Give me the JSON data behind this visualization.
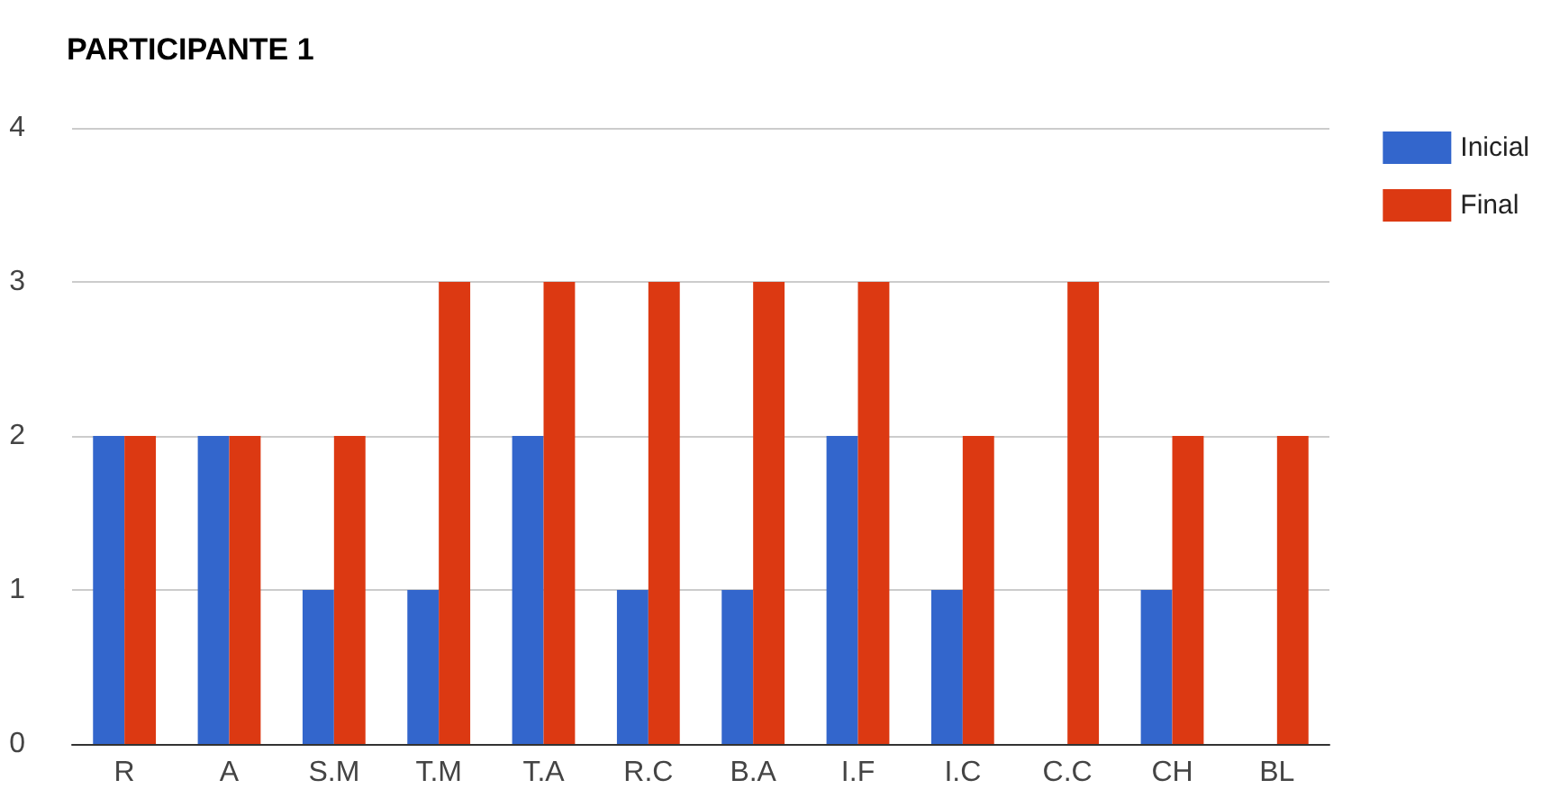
{
  "chart_data": {
    "type": "bar",
    "title": "PARTICIPANTE 1",
    "categories": [
      "R",
      "A",
      "S.M",
      "T.M",
      "T.A",
      "R.C",
      "B.A",
      "I.F",
      "I.C",
      "C.C",
      "CH",
      "BL"
    ],
    "series": [
      {
        "name": "Inicial",
        "color": "#3366cc",
        "values": [
          2,
          2,
          1,
          1,
          2,
          1,
          1,
          2,
          1,
          0,
          1,
          0
        ]
      },
      {
        "name": "Final",
        "color": "#dc3912",
        "values": [
          2,
          2,
          2,
          3,
          3,
          3,
          3,
          3,
          2,
          3,
          2,
          2
        ]
      }
    ],
    "ylim": [
      0,
      4
    ],
    "yticks": [
      0,
      1,
      2,
      3,
      4
    ],
    "grid": "y",
    "legend": "top right"
  }
}
